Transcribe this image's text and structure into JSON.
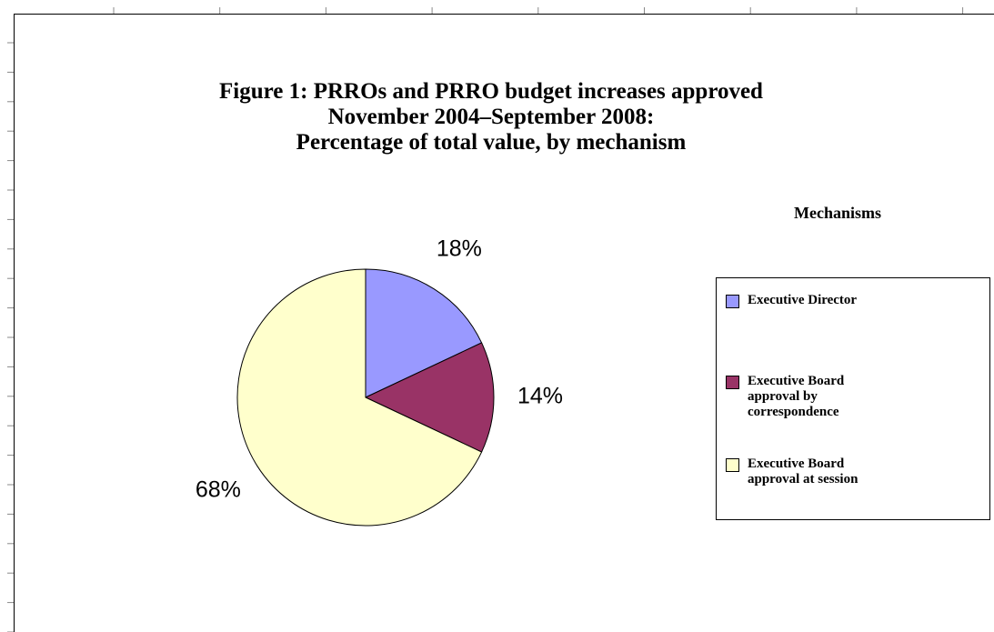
{
  "chart_data": {
    "type": "pie",
    "title": [
      "Figure 1: PRROs and PRRO budget increases approved",
      "November 2004–September 2008:",
      "Percentage of total value, by mechanism"
    ],
    "legend_title": "Mechanisms",
    "categories": [
      "Executive Director",
      "Executive Board approval by correspondence",
      "Executive Board approval at session"
    ],
    "values": [
      18,
      14,
      68
    ],
    "value_labels": [
      "18%",
      "14%",
      "68%"
    ],
    "colors": [
      "#9999ff",
      "#993366",
      "#ffffcc"
    ],
    "legend": "right"
  }
}
